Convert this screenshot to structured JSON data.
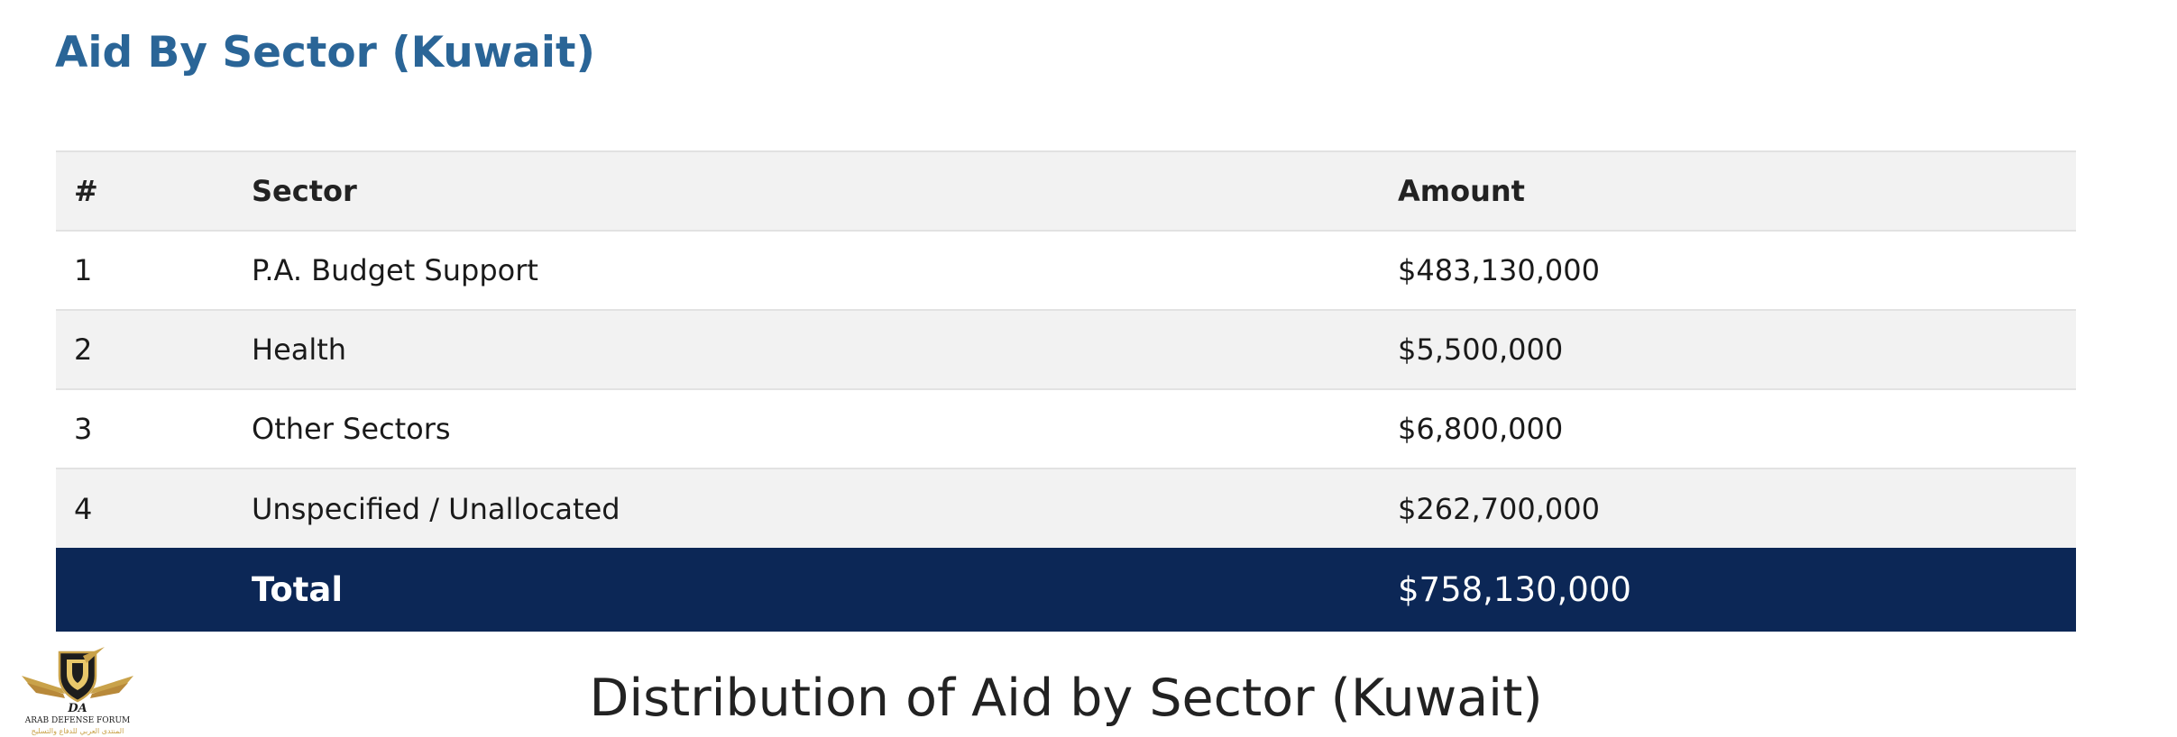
{
  "page": {
    "title": "Aid By Sector (Kuwait)",
    "title_color": "#2a6597"
  },
  "table": {
    "headers": {
      "num": "#",
      "sector": "Sector",
      "amount": "Amount"
    },
    "rows": [
      {
        "num": "1",
        "sector": "P.A. Budget Support",
        "amount": "$483,130,000"
      },
      {
        "num": "2",
        "sector": "Health",
        "amount": "$5,500,000"
      },
      {
        "num": "3",
        "sector": "Other Sectors",
        "amount": "$6,800,000"
      },
      {
        "num": "4",
        "sector": "Unspecified / Unallocated",
        "amount": "$262,700,000"
      }
    ],
    "total": {
      "label": "Total",
      "amount": "$758,130,000"
    },
    "total_row_color": "#0c2756"
  },
  "chart_section": {
    "title": "Distribution of Aid by Sector (Kuwait)"
  },
  "watermark": {
    "monogram": "DA",
    "name_en": "ARAB DEFENSE FORUM",
    "name_ar": "المنتدى العربي للدفاع والتسليح"
  }
}
